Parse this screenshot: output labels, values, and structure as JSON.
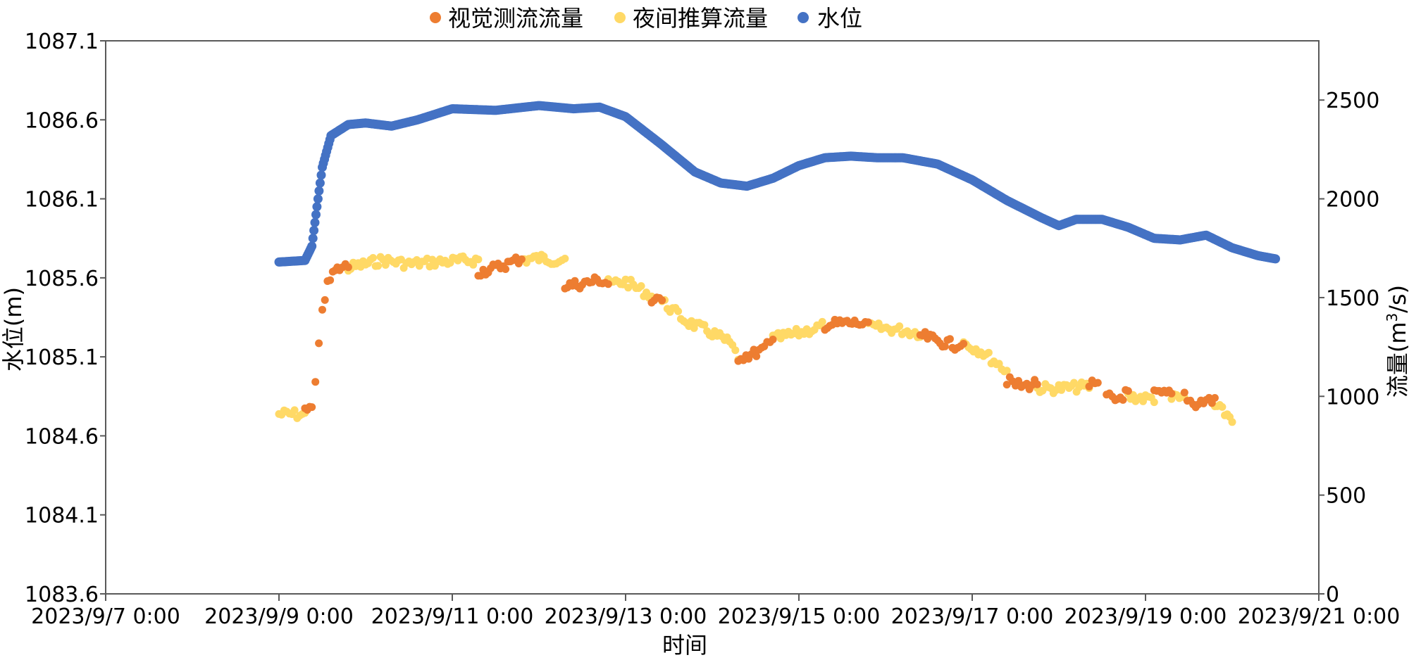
{
  "chart_data": {
    "type": "scatter",
    "title": "",
    "xlabel": "时间",
    "ylabel_left": "水位(m)",
    "ylabel_right": "流量(m³/s)",
    "ylabel_right_parts": {
      "pre": "流量(m",
      "sup": "3",
      "post": "/s)"
    },
    "grid": false,
    "legend_position": "top-center",
    "x_range_days": [
      0,
      14
    ],
    "x_tick_days": [
      0,
      2,
      4,
      6,
      8,
      10,
      12,
      14
    ],
    "x_tick_labels": [
      "2023/9/7 0:00",
      "2023/9/9 0:00",
      "2023/9/11 0:00",
      "2023/9/13 0:00",
      "2023/9/15 0:00",
      "2023/9/17 0:00",
      "2023/9/19 0:00",
      "2023/9/21 0:00"
    ],
    "y_left_range": [
      1083.6,
      1087.1
    ],
    "y_left_ticks": [
      "1083.6",
      "1084.1",
      "1084.6",
      "1085.1",
      "1085.6",
      "1086.1",
      "1086.6",
      "1087.1"
    ],
    "y_right_range": [
      0,
      2800
    ],
    "y_right_ticks": [
      "0",
      "500",
      "1000",
      "1500",
      "2000",
      "2500"
    ],
    "series": [
      {
        "name": "视觉测流流量",
        "color": "#ED7D31",
        "axis": "right",
        "segments": [
          [
            [
              2.3,
              920
            ],
            [
              2.38,
              940
            ],
            [
              2.42,
              1050
            ],
            [
              2.46,
              1250
            ],
            [
              2.5,
              1450
            ],
            [
              2.56,
              1560
            ],
            [
              2.62,
              1620
            ],
            [
              2.7,
              1650
            ],
            [
              2.8,
              1660
            ]
          ],
          [
            [
              4.3,
              1630
            ],
            [
              4.5,
              1650
            ],
            [
              4.7,
              1680
            ],
            [
              4.8,
              1700
            ]
          ],
          [
            [
              5.3,
              1560
            ],
            [
              5.5,
              1570
            ],
            [
              5.7,
              1590
            ],
            [
              5.8,
              1570
            ]
          ],
          [
            [
              6.3,
              1480
            ],
            [
              6.42,
              1480
            ]
          ],
          [
            [
              7.3,
              1200
            ],
            [
              7.45,
              1210
            ],
            [
              7.6,
              1240
            ],
            [
              7.7,
              1280
            ]
          ],
          [
            [
              8.3,
              1360
            ],
            [
              8.5,
              1370
            ],
            [
              8.7,
              1370
            ],
            [
              8.8,
              1350
            ]
          ],
          [
            [
              9.4,
              1310
            ],
            [
              9.6,
              1280
            ],
            [
              9.8,
              1260
            ],
            [
              9.9,
              1270
            ]
          ],
          [
            [
              10.4,
              1080
            ],
            [
              10.5,
              1060
            ],
            [
              10.6,
              1050
            ],
            [
              10.75,
              1070
            ]
          ],
          [
            [
              11.35,
              1060
            ],
            [
              11.45,
              1050
            ]
          ],
          [
            [
              11.55,
              1000
            ],
            [
              11.65,
              980
            ],
            [
              11.8,
              1020
            ]
          ],
          [
            [
              12.1,
              1010
            ],
            [
              12.3,
              1010
            ]
          ],
          [
            [
              12.45,
              1010
            ],
            [
              12.55,
              960
            ],
            [
              12.7,
              980
            ],
            [
              12.8,
              980
            ]
          ]
        ]
      },
      {
        "name": "夜间推算流量",
        "color": "#FFD966",
        "axis": "right",
        "segments": [
          [
            [
              2.0,
              910
            ],
            [
              2.15,
              910
            ],
            [
              2.3,
              905
            ]
          ],
          [
            [
              2.8,
              1650
            ],
            [
              3.0,
              1670
            ],
            [
              3.2,
              1690
            ],
            [
              3.5,
              1670
            ],
            [
              3.8,
              1680
            ],
            [
              4.3,
              1690
            ]
          ],
          [
            [
              4.8,
              1690
            ],
            [
              5.0,
              1700
            ],
            [
              5.2,
              1690
            ],
            [
              5.3,
              1700
            ]
          ],
          [
            [
              5.8,
              1570
            ],
            [
              6.0,
              1580
            ],
            [
              6.3,
              1510
            ]
          ],
          [
            [
              6.42,
              1480
            ],
            [
              6.7,
              1380
            ],
            [
              7.0,
              1320
            ],
            [
              7.2,
              1270
            ],
            [
              7.3,
              1200
            ]
          ],
          [
            [
              7.7,
              1290
            ],
            [
              8.0,
              1320
            ],
            [
              8.3,
              1360
            ]
          ],
          [
            [
              8.8,
              1350
            ],
            [
              9.1,
              1340
            ],
            [
              9.4,
              1320
            ]
          ],
          [
            [
              9.9,
              1270
            ],
            [
              10.1,
              1230
            ],
            [
              10.4,
              1130
            ]
          ],
          [
            [
              10.75,
              1040
            ],
            [
              11.0,
              1040
            ],
            [
              11.35,
              1050
            ]
          ],
          [
            [
              11.8,
              1000
            ],
            [
              12.0,
              990
            ],
            [
              12.1,
              990
            ]
          ],
          [
            [
              12.3,
              990
            ],
            [
              12.45,
              990
            ]
          ],
          [
            [
              12.8,
              950
            ],
            [
              13.0,
              890
            ]
          ]
        ]
      },
      {
        "name": "水位",
        "color": "#4472C4",
        "axis": "left",
        "points": [
          [
            2.0,
            1085.7
          ],
          [
            2.3,
            1085.71
          ],
          [
            2.38,
            1085.8
          ],
          [
            2.45,
            1086.1
          ],
          [
            2.5,
            1086.3
          ],
          [
            2.6,
            1086.5
          ],
          [
            2.8,
            1086.57
          ],
          [
            3.0,
            1086.58
          ],
          [
            3.3,
            1086.56
          ],
          [
            3.6,
            1086.6
          ],
          [
            4.0,
            1086.67
          ],
          [
            4.5,
            1086.66
          ],
          [
            5.0,
            1086.69
          ],
          [
            5.4,
            1086.67
          ],
          [
            5.7,
            1086.68
          ],
          [
            6.0,
            1086.62
          ],
          [
            6.4,
            1086.45
          ],
          [
            6.8,
            1086.27
          ],
          [
            7.1,
            1086.2
          ],
          [
            7.4,
            1086.18
          ],
          [
            7.7,
            1086.23
          ],
          [
            8.0,
            1086.31
          ],
          [
            8.3,
            1086.36
          ],
          [
            8.6,
            1086.37
          ],
          [
            8.9,
            1086.36
          ],
          [
            9.2,
            1086.36
          ],
          [
            9.6,
            1086.32
          ],
          [
            10.0,
            1086.22
          ],
          [
            10.4,
            1086.09
          ],
          [
            10.8,
            1085.98
          ],
          [
            11.0,
            1085.93
          ],
          [
            11.2,
            1085.97
          ],
          [
            11.5,
            1085.97
          ],
          [
            11.8,
            1085.92
          ],
          [
            12.1,
            1085.85
          ],
          [
            12.4,
            1085.84
          ],
          [
            12.7,
            1085.87
          ],
          [
            13.0,
            1085.79
          ],
          [
            13.3,
            1085.74
          ],
          [
            13.5,
            1085.72
          ]
        ]
      }
    ]
  }
}
